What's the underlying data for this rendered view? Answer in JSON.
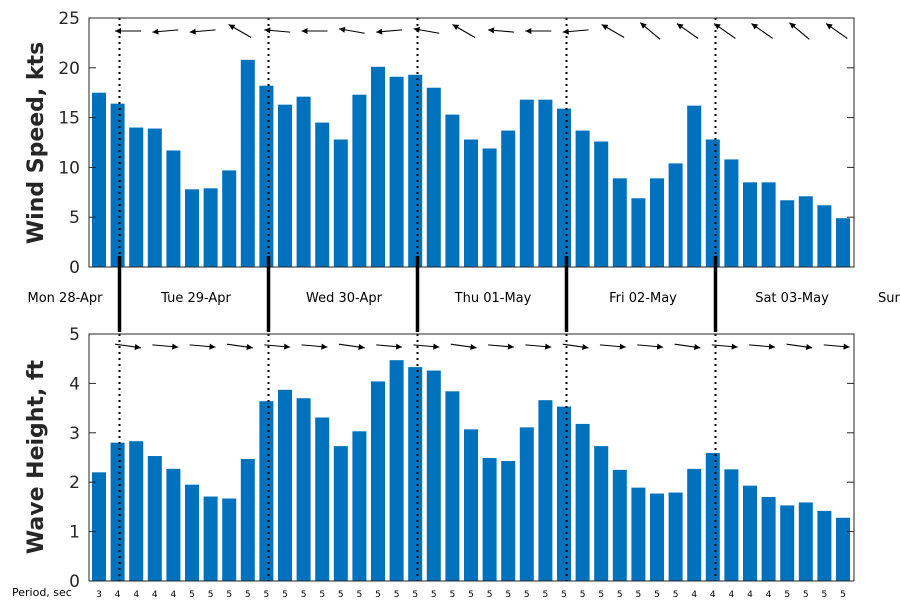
{
  "chart_data": [
    {
      "type": "bar",
      "ylabel": "Wind Speed, kts",
      "ylim": [
        0,
        25
      ],
      "yticks": [
        0,
        5,
        10,
        15,
        20,
        25
      ],
      "bar_color": "#0072bd",
      "direction_arrows": true,
      "values": [
        17.5,
        16.4,
        14.0,
        13.9,
        11.7,
        7.8,
        7.9,
        9.7,
        20.8,
        18.2,
        16.3,
        17.1,
        14.5,
        12.8,
        17.3,
        20.1,
        19.1,
        19.3,
        18.0,
        15.3,
        12.8,
        11.9,
        13.7,
        16.8,
        16.8,
        15.9,
        13.7,
        12.6,
        8.9,
        6.9,
        8.9,
        10.4,
        16.2,
        12.8,
        10.8,
        8.5,
        8.5,
        6.7,
        7.1,
        6.2,
        4.9
      ]
    },
    {
      "type": "bar",
      "ylabel": "Wave Height, ft",
      "ylim": [
        0,
        5
      ],
      "yticks": [
        0,
        1,
        2,
        3,
        4,
        5
      ],
      "bar_color": "#0072bd",
      "direction_arrows": true,
      "values": [
        2.2,
        2.8,
        2.83,
        2.53,
        2.27,
        1.95,
        1.71,
        1.67,
        2.47,
        3.64,
        3.87,
        3.7,
        3.31,
        2.73,
        3.03,
        4.04,
        4.47,
        4.33,
        4.26,
        3.84,
        3.07,
        2.49,
        2.43,
        3.11,
        3.66,
        3.53,
        3.18,
        2.73,
        2.25,
        1.89,
        1.77,
        1.79,
        2.27,
        2.59,
        2.26,
        1.93,
        1.7,
        1.53,
        1.59,
        1.42,
        1.28
      ]
    }
  ],
  "day_labels": [
    "Mon 28-Apr",
    "Tue 29-Apr",
    "Wed 30-Apr",
    "Thu 01-May",
    "Fri 02-May",
    "Sat 03-May",
    "Sun"
  ],
  "period_title": "Period, sec",
  "periods": [
    "3",
    "4",
    "4",
    "4",
    "4",
    "5",
    "5",
    "5",
    "5",
    "5",
    "5",
    "5",
    "5",
    "5",
    "5",
    "5",
    "5",
    "5",
    "5",
    "5",
    "5",
    "5",
    "5",
    "5",
    "5",
    "5",
    "5",
    "5",
    "5",
    "5",
    "5",
    "5",
    "4",
    "4",
    "4",
    "4",
    "4",
    "5",
    "5",
    "5",
    "5"
  ]
}
